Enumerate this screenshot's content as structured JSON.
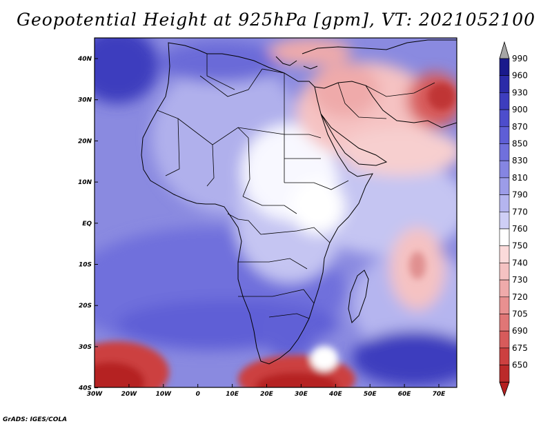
{
  "title": "Geopotential Height at 925hPa [gpm], VT: 2021052100",
  "footer": "GrADS: IGES/COLA",
  "map": {
    "lat_labels": [
      "40N",
      "30N",
      "20N",
      "10N",
      "EQ",
      "10S",
      "20S",
      "30S",
      "40S"
    ],
    "lon_labels": [
      "30W",
      "20W",
      "10W",
      "0",
      "10E",
      "20E",
      "30E",
      "40E",
      "50E",
      "60E",
      "70E"
    ],
    "lon_range_deg": [
      -30,
      75
    ],
    "lat_range_deg": [
      -40,
      45
    ]
  },
  "colorbar": {
    "levels": [
      "990",
      "960",
      "930",
      "900",
      "870",
      "850",
      "830",
      "810",
      "790",
      "770",
      "760",
      "750",
      "740",
      "730",
      "720",
      "705",
      "690",
      "675",
      "650"
    ],
    "colors": [
      "#1a1a8c",
      "#2b2ba8",
      "#3d3dbe",
      "#4d4dcc",
      "#5e5ed6",
      "#7070dc",
      "#8585e2",
      "#9c9ce8",
      "#b5b5ef",
      "#cfcff6",
      "#ffffff",
      "#fbdada",
      "#f5c2c2",
      "#efaaaa",
      "#e89090",
      "#e07676",
      "#d75b5b",
      "#cc4040",
      "#bb2a2a"
    ],
    "over_color": "#a6a6a6",
    "under_color": "#b52020"
  }
}
